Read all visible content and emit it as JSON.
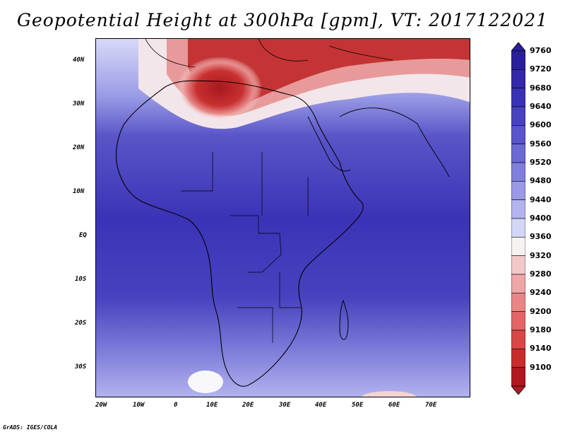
{
  "title": "Geopotential Height at 300hPa [gpm], VT: 2017122021",
  "credit": "GrADS: IGES/COLA",
  "map": {
    "lat_labels": [
      "40N",
      "30N",
      "20N",
      "10N",
      "EQ",
      "10S",
      "20S",
      "30S"
    ],
    "lon_labels": [
      "20W",
      "10W",
      "0",
      "10E",
      "20E",
      "30E",
      "40E",
      "50E",
      "60E",
      "70E"
    ],
    "colors": {
      "land_outline": "#000000",
      "low": "#3a2fb4",
      "high": "#b01820",
      "mid": "#ffffff"
    }
  },
  "colorbar": {
    "levels": [
      "9760",
      "9720",
      "9680",
      "9640",
      "9600",
      "9560",
      "9520",
      "9480",
      "9440",
      "9400",
      "9360",
      "9320",
      "9280",
      "9240",
      "9200",
      "9180",
      "9140",
      "9100"
    ],
    "colors": [
      "#2a1f9a",
      "#3328a8",
      "#3a32b4",
      "#4942be",
      "#5a55c8",
      "#6b69d2",
      "#807fdc",
      "#9999e6",
      "#b3b4ef",
      "#d4d6f8",
      "#f6f2f2",
      "#f4c8c8",
      "#eea6a6",
      "#e88686",
      "#e26666",
      "#d84646",
      "#c82c2c",
      "#b01820"
    ]
  }
}
